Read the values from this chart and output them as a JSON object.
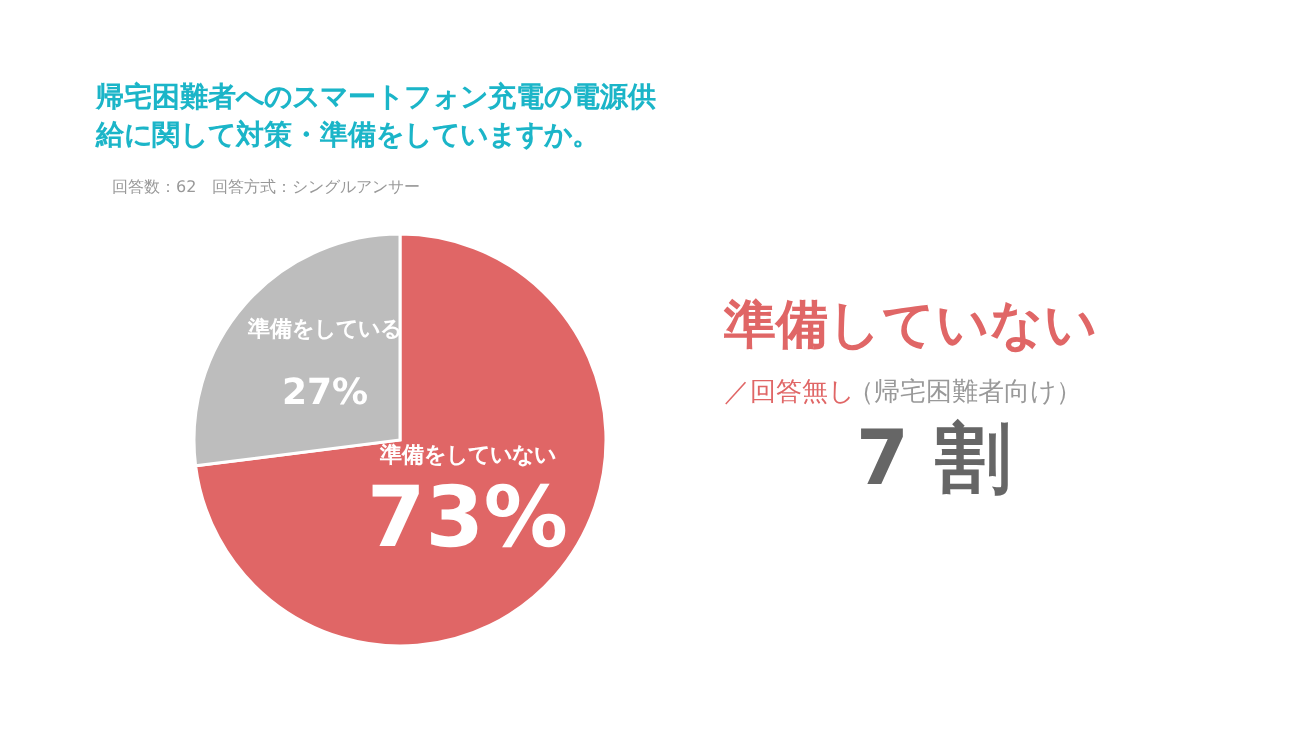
{
  "chart_data": {
    "type": "pie",
    "title": "帰宅困難者へのスマートフォン充電の電源供給に関して対策・準備をしていますか。",
    "subtitle": "回答数：62　回答方式：シングルアンサー",
    "categories": [
      "準備をしていない",
      "準備をしている"
    ],
    "values": [
      73,
      27
    ],
    "colors": [
      "#e06666",
      "#bdbdbd"
    ],
    "data_labels": true,
    "value_labels": [
      "73%",
      "27%"
    ],
    "annotations": [
      "準備していない",
      "／回答無し",
      "（帰宅困難者向け）",
      "7 割"
    ]
  }
}
